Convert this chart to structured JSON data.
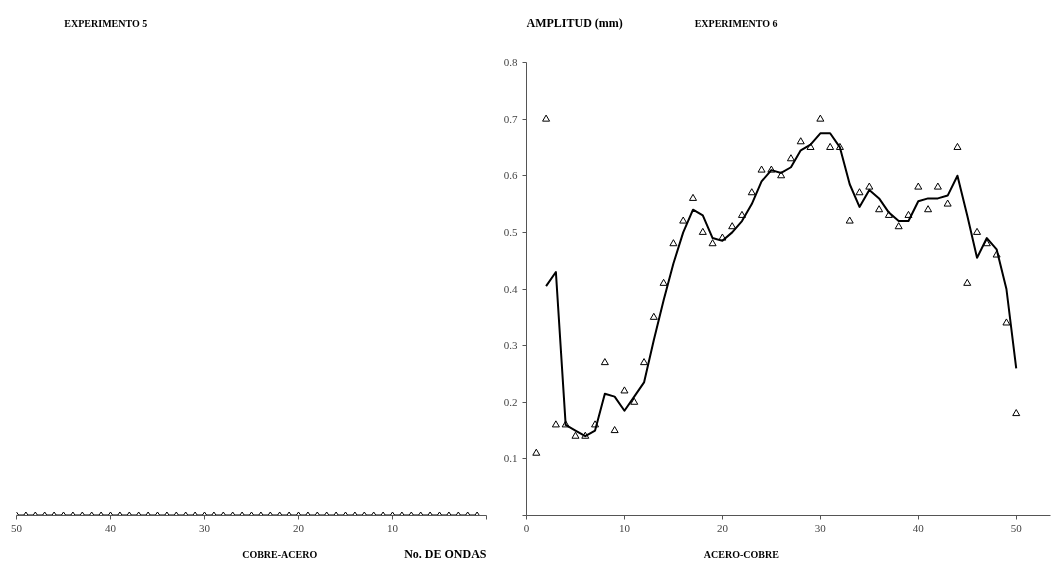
{
  "chart_data": [
    {
      "type": "line",
      "title": "EXPERIMENTO 5",
      "xlabel": "No. DE ONDAS",
      "annotations": [
        "COBRE-ACERO"
      ],
      "xlim": [
        50,
        0
      ],
      "xticks": [
        50,
        40,
        30,
        20,
        10,
        {
          "value": 0,
          "label": null
        }
      ],
      "ylim": [
        0,
        0.8
      ],
      "tick_labels": "x",
      "grid": false,
      "series": [
        {
          "marker": "diamond",
          "color": "#000000",
          "x": [
            50,
            49,
            48,
            47,
            46,
            45,
            44,
            43,
            42,
            41,
            40,
            39,
            38,
            37,
            36,
            35,
            34,
            33,
            32,
            31,
            30,
            29,
            28,
            27,
            26,
            25,
            24,
            23,
            22,
            21,
            20,
            19,
            18,
            17,
            16,
            15,
            14,
            13,
            12,
            11,
            10,
            9,
            8,
            7,
            6,
            5,
            4,
            3,
            2,
            1
          ],
          "values": [
            0,
            0,
            0,
            0,
            0,
            0,
            0,
            0,
            0,
            0,
            0,
            0,
            0,
            0,
            0,
            0,
            0,
            0,
            0,
            0,
            0,
            0,
            0,
            0,
            0,
            0,
            0,
            0,
            0,
            0,
            0,
            0,
            0,
            0,
            0,
            0,
            0,
            0,
            0,
            0,
            0,
            0,
            0,
            0,
            0,
            0,
            0,
            0,
            0,
            0
          ]
        }
      ]
    },
    {
      "type": "scatter",
      "title": "EXPERIMENTO 6",
      "ylabel": "AMPLITUD (mm)",
      "annotations": [
        "ACERO-COBRE"
      ],
      "xlim": [
        0,
        53.5
      ],
      "xticks": [
        0,
        10,
        20,
        30,
        40,
        50
      ],
      "ylim": [
        0,
        0.8
      ],
      "yticks": [
        {
          "value": 0,
          "label": null
        },
        0.1,
        0.2,
        0.3,
        0.4,
        0.5,
        0.6,
        0.7,
        0.8
      ],
      "grid": false,
      "series": [
        {
          "marker": "triangle",
          "color": "#000000",
          "x": [
            1,
            2,
            3,
            4,
            5,
            6,
            7,
            8,
            9,
            10,
            11,
            12,
            13,
            14,
            15,
            16,
            17,
            18,
            19,
            20,
            21,
            22,
            23,
            24,
            25,
            26,
            27,
            28,
            29,
            30,
            31,
            32,
            33,
            34,
            35,
            36,
            37,
            38,
            39,
            40,
            41,
            42,
            43,
            44,
            45,
            46,
            47,
            48,
            49,
            50
          ],
          "values": [
            0.11,
            0.7,
            0.16,
            0.16,
            0.14,
            0.14,
            0.16,
            0.27,
            0.15,
            0.22,
            0.2,
            0.27,
            0.35,
            0.41,
            0.48,
            0.52,
            0.56,
            0.5,
            0.48,
            0.49,
            0.51,
            0.53,
            0.57,
            0.61,
            0.61,
            0.6,
            0.63,
            0.66,
            0.65,
            0.7,
            0.65,
            0.65,
            0.52,
            0.57,
            0.58,
            0.54,
            0.53,
            0.51,
            0.53,
            0.58,
            0.54,
            0.58,
            0.55,
            0.65,
            0.41,
            0.5,
            0.48,
            0.46,
            0.34,
            0.18
          ]
        },
        {
          "type": "line",
          "marker": "none",
          "color": "#000000",
          "x": [
            2,
            3,
            4,
            5,
            6,
            7,
            8,
            9,
            10,
            11,
            12,
            13,
            14,
            15,
            16,
            17,
            18,
            19,
            20,
            21,
            22,
            23,
            24,
            25,
            26,
            27,
            28,
            29,
            30,
            31,
            32,
            33,
            34,
            35,
            36,
            37,
            38,
            39,
            40,
            41,
            42,
            43,
            44,
            45,
            46,
            47,
            48,
            49,
            50
          ],
          "values": [
            0.405,
            0.43,
            0.16,
            0.15,
            0.14,
            0.15,
            0.215,
            0.21,
            0.185,
            0.21,
            0.235,
            0.31,
            0.38,
            0.445,
            0.5,
            0.54,
            0.53,
            0.49,
            0.485,
            0.5,
            0.52,
            0.55,
            0.59,
            0.61,
            0.605,
            0.615,
            0.645,
            0.655,
            0.675,
            0.675,
            0.65,
            0.585,
            0.545,
            0.575,
            0.56,
            0.535,
            0.52,
            0.52,
            0.555,
            0.56,
            0.56,
            0.565,
            0.6,
            0.53,
            0.455,
            0.49,
            0.47,
            0.4,
            0.26
          ]
        }
      ]
    }
  ]
}
